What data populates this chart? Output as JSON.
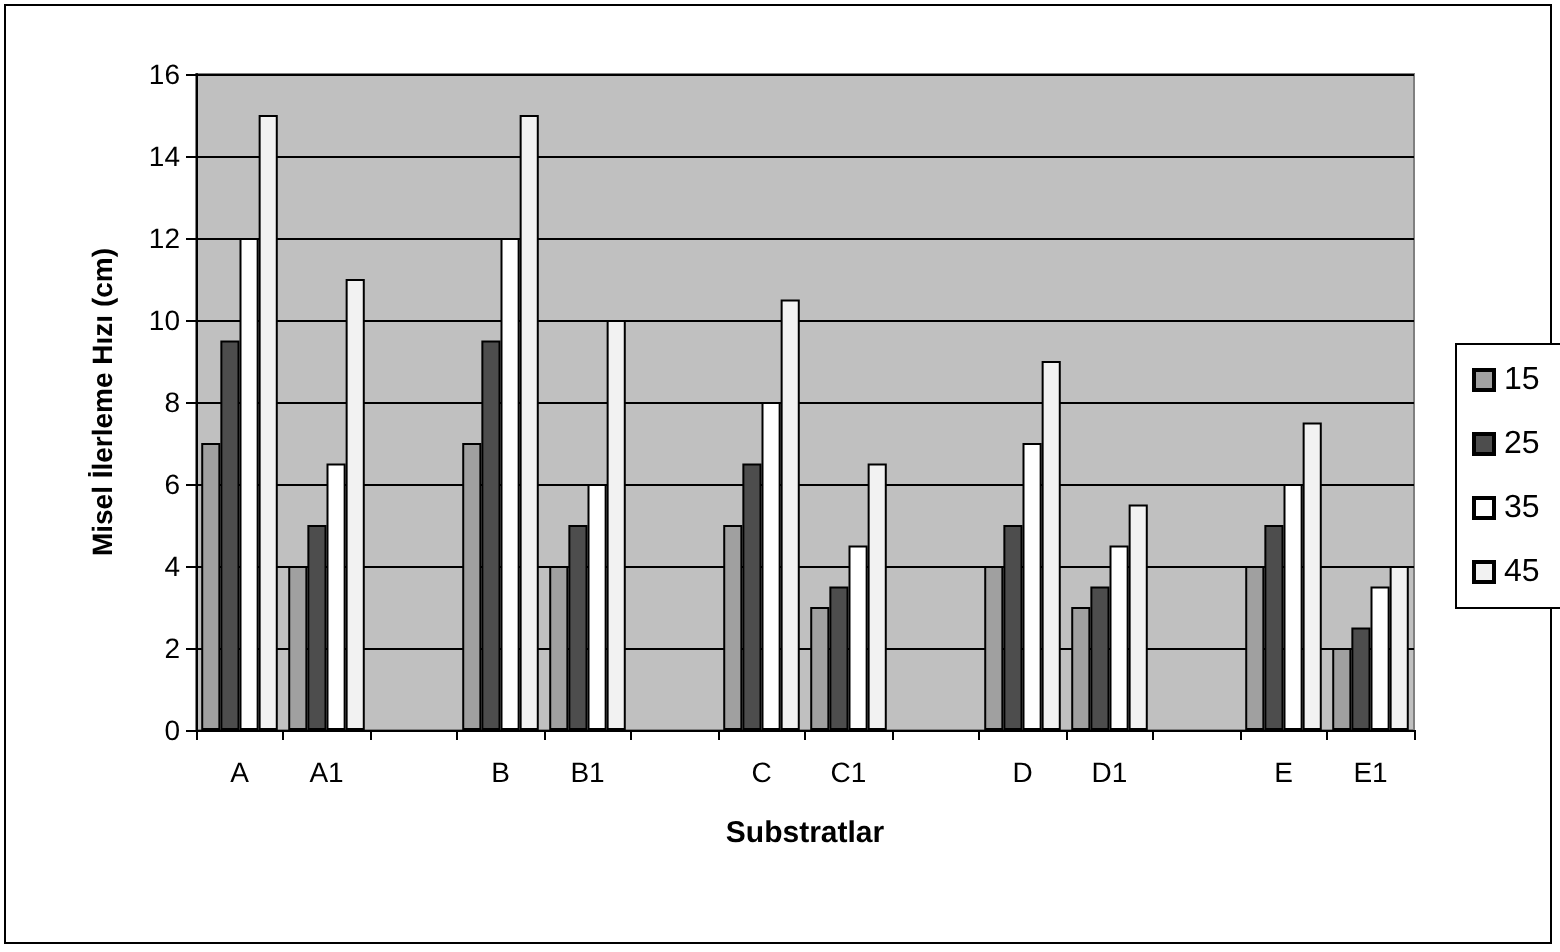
{
  "chart_data": {
    "type": "bar",
    "xlabel": "Substratlar",
    "ylabel": "Misel İlerleme Hızı (cm)",
    "categories": [
      "A",
      "A1",
      null,
      "B",
      "B1",
      null,
      "C",
      "C1",
      null,
      "D",
      "D1",
      null,
      "E",
      "E1"
    ],
    "series": [
      {
        "name": "15",
        "color": "#a0a0a0",
        "values": [
          7,
          4,
          null,
          7,
          4,
          null,
          5,
          3,
          null,
          4,
          3,
          null,
          4,
          2
        ]
      },
      {
        "name": "25",
        "color": "#4d4d4d",
        "values": [
          9.5,
          5,
          null,
          9.5,
          5,
          null,
          6.5,
          3.5,
          null,
          5,
          3.5,
          null,
          5,
          2.5
        ]
      },
      {
        "name": "35",
        "color": "#ffffff",
        "values": [
          12,
          6.5,
          null,
          12,
          6,
          null,
          8,
          4.5,
          null,
          7,
          4.5,
          null,
          6,
          3.5
        ]
      },
      {
        "name": "45",
        "color": "#f2f2f2",
        "values": [
          15,
          11,
          null,
          15,
          10,
          null,
          10.5,
          6.5,
          null,
          9,
          5.5,
          null,
          7.5,
          4
        ]
      }
    ],
    "ylim": [
      0,
      16
    ],
    "yticks": [
      0,
      2,
      4,
      6,
      8,
      10,
      12,
      14,
      16
    ],
    "grid": "y",
    "legend": "right"
  }
}
